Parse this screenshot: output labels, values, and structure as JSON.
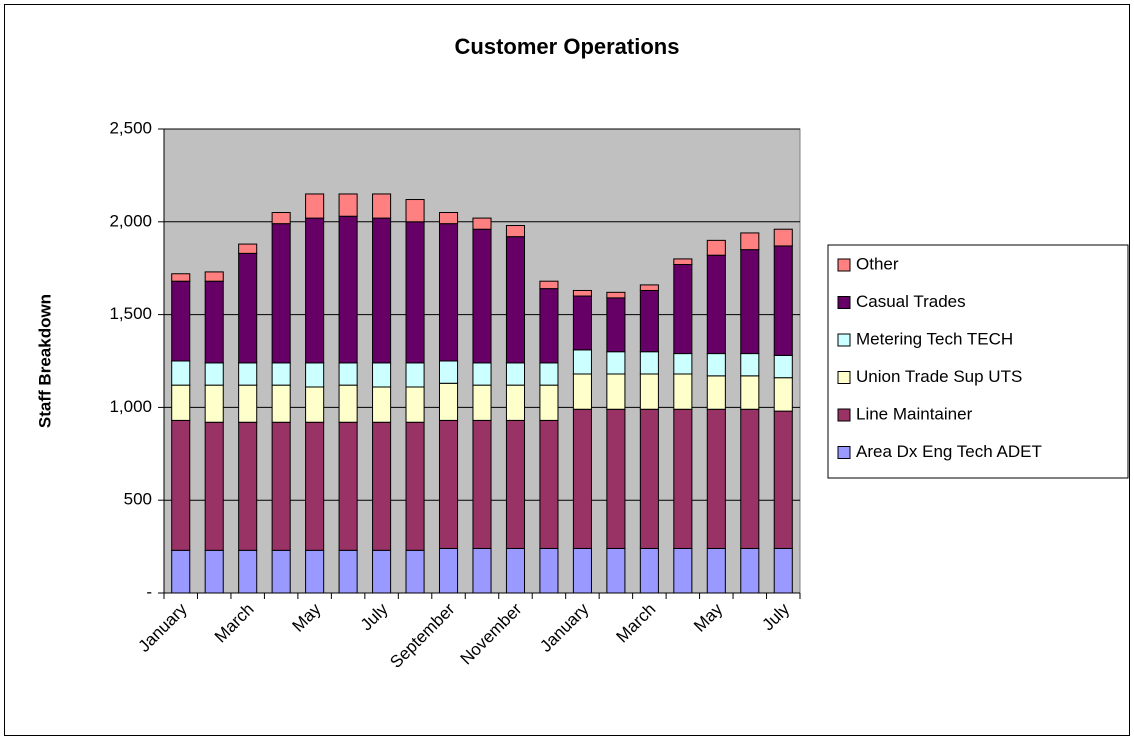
{
  "chart_data": {
    "type": "stacked_bar",
    "title": "Customer Operations",
    "y_label": "Staff Breakdown",
    "categories": [
      "January",
      null,
      "March",
      null,
      "May",
      null,
      "July",
      null,
      "September",
      null,
      "November",
      null,
      "January",
      null,
      "March",
      null,
      "May",
      null,
      "July"
    ],
    "series": [
      {
        "name": "Area Dx Eng Tech ADET",
        "color": "#9999ff",
        "values": [
          230,
          230,
          230,
          230,
          230,
          230,
          230,
          230,
          240,
          240,
          240,
          240,
          240,
          240,
          240,
          240,
          240,
          240,
          240
        ]
      },
      {
        "name": "Line Maintainer",
        "color": "#993366",
        "values": [
          700,
          690,
          690,
          690,
          690,
          690,
          690,
          690,
          690,
          690,
          690,
          690,
          750,
          750,
          750,
          750,
          750,
          750,
          740
        ]
      },
      {
        "name": "Union Trade Sup UTS",
        "color": "#ffffcc",
        "values": [
          190,
          200,
          200,
          200,
          190,
          200,
          190,
          190,
          200,
          190,
          190,
          190,
          190,
          190,
          190,
          190,
          180,
          180,
          180
        ]
      },
      {
        "name": "Metering Tech TECH",
        "color": "#ccffff",
        "values": [
          130,
          120,
          120,
          120,
          130,
          120,
          130,
          130,
          120,
          120,
          120,
          120,
          130,
          120,
          120,
          110,
          120,
          120,
          120
        ]
      },
      {
        "name": "Casual Trades",
        "color": "#660066",
        "values": [
          430,
          440,
          590,
          750,
          780,
          790,
          780,
          760,
          740,
          720,
          680,
          400,
          290,
          290,
          330,
          480,
          530,
          560,
          590
        ]
      },
      {
        "name": "Other",
        "color": "#ff8080",
        "values": [
          40,
          50,
          50,
          60,
          130,
          120,
          130,
          120,
          60,
          60,
          60,
          40,
          30,
          30,
          30,
          30,
          80,
          90,
          90
        ]
      }
    ],
    "ylim": [
      0,
      2500
    ],
    "yticks": [
      {
        "value": 0,
        "label": "-"
      },
      500,
      {
        "value": 1000,
        "label": "1,000"
      },
      {
        "value": 1500,
        "label": "1,500"
      },
      {
        "value": 2000,
        "label": "2,000"
      },
      {
        "value": 2500,
        "label": "2,500"
      }
    ],
    "grid": true,
    "legend": "right",
    "plot_background": "#c0c0c0"
  }
}
